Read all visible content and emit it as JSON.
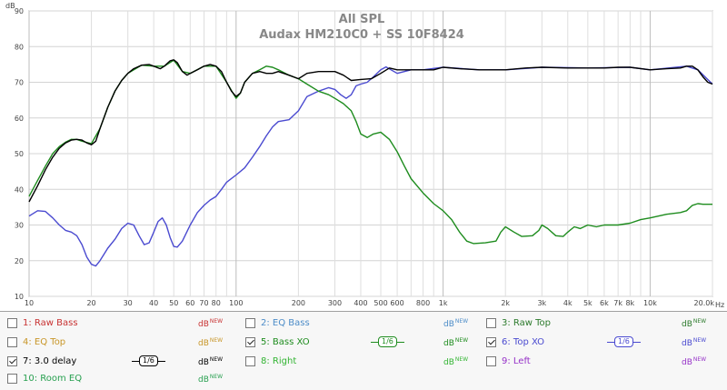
{
  "chart_data": {
    "type": "line",
    "title": "All SPL",
    "subtitle": "Audax HM210C0 + SS 10F8424",
    "ylabel": "dB",
    "xlabel_unit": "Hz",
    "xscale": "log",
    "xlim": [
      10,
      20000
    ],
    "ylim": [
      10,
      90
    ],
    "yticks": [
      "90",
      "80",
      "70",
      "60",
      "50",
      "40",
      "30",
      "20",
      "10"
    ],
    "xticks": [
      "10",
      "20",
      "30",
      "40",
      "50",
      "60",
      "70",
      "80",
      "100",
      "200",
      "300",
      "400",
      "500",
      "600",
      "800",
      "1k",
      "2k",
      "3k",
      "4k",
      "5k",
      "6k",
      "7k",
      "8k",
      "10k",
      "20.0k"
    ],
    "grid": true,
    "series": [
      {
        "name": "7: 3.0 delay",
        "color": "#000000",
        "points": [
          [
            10,
            36.5
          ],
          [
            11,
            41
          ],
          [
            12,
            45.5
          ],
          [
            13,
            49
          ],
          [
            14,
            51.5
          ],
          [
            15,
            53
          ],
          [
            16,
            53.8
          ],
          [
            17,
            54
          ],
          [
            18,
            53.8
          ],
          [
            19,
            53
          ],
          [
            20,
            52.5
          ],
          [
            21,
            53.5
          ],
          [
            22,
            57
          ],
          [
            24,
            63
          ],
          [
            26,
            67.5
          ],
          [
            28,
            70.5
          ],
          [
            30,
            72.5
          ],
          [
            32,
            73.8
          ],
          [
            35,
            74.8
          ],
          [
            38,
            75
          ],
          [
            40,
            74.5
          ],
          [
            43,
            73.8
          ],
          [
            45,
            74.5
          ],
          [
            48,
            76
          ],
          [
            50,
            76.3
          ],
          [
            52,
            75.5
          ],
          [
            55,
            73
          ],
          [
            58,
            72
          ],
          [
            60,
            72.5
          ],
          [
            65,
            73.5
          ],
          [
            70,
            74.5
          ],
          [
            75,
            75
          ],
          [
            80,
            74.5
          ],
          [
            85,
            73
          ],
          [
            90,
            70
          ],
          [
            95,
            67.5
          ],
          [
            100,
            66
          ],
          [
            105,
            67
          ],
          [
            110,
            70
          ],
          [
            120,
            72.5
          ],
          [
            130,
            73
          ],
          [
            140,
            72.5
          ],
          [
            150,
            72.5
          ],
          [
            160,
            73
          ],
          [
            180,
            72
          ],
          [
            200,
            71
          ],
          [
            220,
            72.5
          ],
          [
            250,
            73
          ],
          [
            280,
            73
          ],
          [
            300,
            73
          ],
          [
            330,
            72
          ],
          [
            360,
            70.5
          ],
          [
            400,
            70.8
          ],
          [
            450,
            71
          ],
          [
            500,
            72.5
          ],
          [
            550,
            74
          ],
          [
            600,
            73.5
          ],
          [
            700,
            73.5
          ],
          [
            800,
            73.5
          ],
          [
            900,
            73.5
          ],
          [
            1000,
            74.2
          ],
          [
            1200,
            73.8
          ],
          [
            1500,
            73.5
          ],
          [
            1800,
            73.5
          ],
          [
            2000,
            73.5
          ],
          [
            2500,
            74
          ],
          [
            3000,
            74.2
          ],
          [
            4000,
            74
          ],
          [
            5000,
            74
          ],
          [
            6000,
            74
          ],
          [
            7000,
            74.2
          ],
          [
            8000,
            74.2
          ],
          [
            10000,
            73.5
          ],
          [
            12000,
            73.8
          ],
          [
            14000,
            74
          ],
          [
            15000,
            74.5
          ],
          [
            16000,
            74.5
          ],
          [
            17000,
            73.5
          ],
          [
            18000,
            71.5
          ],
          [
            19000,
            70
          ],
          [
            20000,
            69.5
          ]
        ]
      },
      {
        "name": "5: Bass XO",
        "color": "#1e8c1e",
        "points": [
          [
            10,
            38
          ],
          [
            11,
            42.5
          ],
          [
            12,
            46.5
          ],
          [
            13,
            50
          ],
          [
            14,
            52
          ],
          [
            15,
            53.2
          ],
          [
            16,
            54
          ],
          [
            17,
            54
          ],
          [
            18,
            53.5
          ],
          [
            20,
            52.8
          ],
          [
            22,
            57
          ],
          [
            24,
            63
          ],
          [
            26,
            67.5
          ],
          [
            28,
            70.5
          ],
          [
            30,
            72.5
          ],
          [
            35,
            74.8
          ],
          [
            40,
            74.5
          ],
          [
            45,
            74.5
          ],
          [
            50,
            76.2
          ],
          [
            55,
            73
          ],
          [
            60,
            72.5
          ],
          [
            70,
            74.5
          ],
          [
            80,
            74.5
          ],
          [
            90,
            70
          ],
          [
            100,
            65.5
          ],
          [
            105,
            67
          ],
          [
            110,
            70
          ],
          [
            120,
            72.5
          ],
          [
            130,
            73.5
          ],
          [
            140,
            74.5
          ],
          [
            150,
            74.2
          ],
          [
            160,
            73.5
          ],
          [
            180,
            72
          ],
          [
            200,
            71
          ],
          [
            220,
            69.5
          ],
          [
            250,
            67.5
          ],
          [
            280,
            66.5
          ],
          [
            300,
            65.5
          ],
          [
            330,
            64
          ],
          [
            360,
            62
          ],
          [
            380,
            59
          ],
          [
            400,
            55.5
          ],
          [
            430,
            54.5
          ],
          [
            460,
            55.5
          ],
          [
            500,
            56
          ],
          [
            550,
            54
          ],
          [
            600,
            50.5
          ],
          [
            650,
            46.5
          ],
          [
            700,
            43
          ],
          [
            800,
            39
          ],
          [
            900,
            36
          ],
          [
            1000,
            34
          ],
          [
            1100,
            31.5
          ],
          [
            1200,
            28
          ],
          [
            1300,
            25.5
          ],
          [
            1400,
            24.8
          ],
          [
            1600,
            25
          ],
          [
            1800,
            25.5
          ],
          [
            1900,
            28
          ],
          [
            2000,
            29.5
          ],
          [
            2200,
            28
          ],
          [
            2400,
            26.8
          ],
          [
            2700,
            27
          ],
          [
            2900,
            28.5
          ],
          [
            3000,
            30
          ],
          [
            3200,
            29
          ],
          [
            3500,
            27
          ],
          [
            3800,
            26.8
          ],
          [
            4000,
            28
          ],
          [
            4300,
            29.5
          ],
          [
            4600,
            29
          ],
          [
            5000,
            30
          ],
          [
            5500,
            29.5
          ],
          [
            6000,
            30
          ],
          [
            7000,
            30
          ],
          [
            8000,
            30.5
          ],
          [
            9000,
            31.5
          ],
          [
            10000,
            32
          ],
          [
            12000,
            33
          ],
          [
            14000,
            33.5
          ],
          [
            15000,
            34
          ],
          [
            16000,
            35.5
          ],
          [
            17000,
            36
          ],
          [
            18000,
            35.8
          ],
          [
            20000,
            35.8
          ]
        ]
      },
      {
        "name": "6: Top XO",
        "color": "#4a4ad0",
        "points": [
          [
            10,
            32.5
          ],
          [
            11,
            34
          ],
          [
            12,
            33.8
          ],
          [
            13,
            32
          ],
          [
            14,
            30
          ],
          [
            15,
            28.5
          ],
          [
            16,
            28
          ],
          [
            17,
            27
          ],
          [
            18,
            24.5
          ],
          [
            19,
            21
          ],
          [
            20,
            19
          ],
          [
            21,
            18.5
          ],
          [
            22,
            20
          ],
          [
            24,
            23.5
          ],
          [
            26,
            26
          ],
          [
            28,
            29
          ],
          [
            30,
            30.5
          ],
          [
            32,
            30
          ],
          [
            34,
            27
          ],
          [
            36,
            24.5
          ],
          [
            38,
            25
          ],
          [
            40,
            28
          ],
          [
            42,
            31
          ],
          [
            44,
            32
          ],
          [
            46,
            30
          ],
          [
            48,
            26.5
          ],
          [
            50,
            24
          ],
          [
            52,
            23.8
          ],
          [
            55,
            25.5
          ],
          [
            60,
            30
          ],
          [
            65,
            33.5
          ],
          [
            70,
            35.5
          ],
          [
            75,
            37
          ],
          [
            80,
            38
          ],
          [
            85,
            40
          ],
          [
            90,
            42
          ],
          [
            100,
            44
          ],
          [
            110,
            46
          ],
          [
            120,
            49
          ],
          [
            130,
            52
          ],
          [
            140,
            55
          ],
          [
            150,
            57.5
          ],
          [
            160,
            59
          ],
          [
            180,
            59.5
          ],
          [
            200,
            62
          ],
          [
            220,
            66
          ],
          [
            250,
            67.5
          ],
          [
            280,
            68.5
          ],
          [
            300,
            68
          ],
          [
            320,
            66.5
          ],
          [
            340,
            65.5
          ],
          [
            360,
            66.5
          ],
          [
            380,
            69
          ],
          [
            400,
            69.5
          ],
          [
            430,
            70
          ],
          [
            460,
            71.5
          ],
          [
            500,
            73.5
          ],
          [
            530,
            74.3
          ],
          [
            560,
            73.5
          ],
          [
            600,
            72.5
          ],
          [
            700,
            73.5
          ],
          [
            800,
            73.5
          ],
          [
            1000,
            74.2
          ],
          [
            1500,
            73.5
          ],
          [
            2000,
            73.5
          ],
          [
            3000,
            74.2
          ],
          [
            5000,
            74
          ],
          [
            8000,
            74.2
          ],
          [
            10000,
            73.5
          ],
          [
            15000,
            74.5
          ],
          [
            17000,
            73.5
          ],
          [
            20000,
            69.5
          ]
        ]
      }
    ]
  },
  "legend": {
    "items": [
      {
        "label": "1: Raw Bass",
        "color": "#c83232",
        "checked": false,
        "db": "dB",
        "new": "NEW"
      },
      {
        "label": "2: EQ Bass",
        "color": "#4c8cc8",
        "checked": false,
        "db": "dB",
        "new": "NEW"
      },
      {
        "label": "3: Raw Top",
        "color": "#2c7a2c",
        "checked": false,
        "db": "dB",
        "new": "NEW"
      },
      {
        "label": "4: EQ Top",
        "color": "#c89628",
        "checked": false,
        "db": "dB",
        "new": "NEW"
      },
      {
        "label": "5: Bass XO",
        "color": "#1e8c1e",
        "checked": true,
        "db": "dB",
        "new": "NEW",
        "smoothing": "1/6"
      },
      {
        "label": "6: Top XO",
        "color": "#4a4ad0",
        "checked": true,
        "db": "dB",
        "new": "NEW",
        "smoothing": "1/6"
      },
      {
        "label": "7: 3.0 delay",
        "color": "#000000",
        "checked": true,
        "db": "dB",
        "new": "NEW",
        "smoothing": "1/6"
      },
      {
        "label": "8: Right",
        "color": "#32b432",
        "checked": false,
        "db": "dB",
        "new": "NEW"
      },
      {
        "label": "9: Left",
        "color": "#9632c8",
        "checked": false,
        "db": "dB",
        "new": "NEW"
      },
      {
        "label": "10: Room EQ",
        "color": "#28a050",
        "checked": false,
        "db": "dB",
        "new": "NEW"
      }
    ]
  }
}
